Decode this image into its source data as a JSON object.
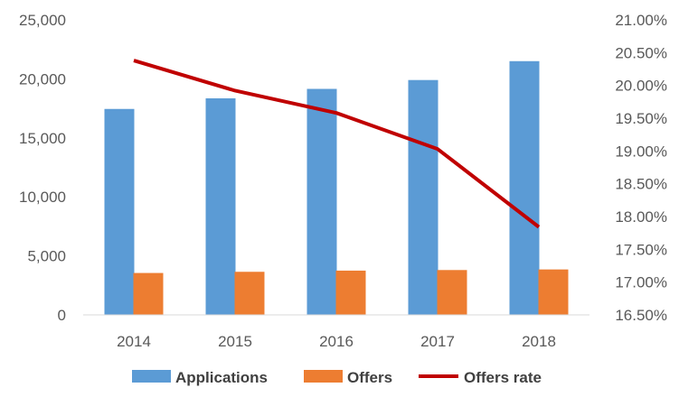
{
  "chart_data": {
    "type": "bar",
    "title": "",
    "xlabel": "",
    "ylabel": "",
    "categories": [
      "2014",
      "2015",
      "2016",
      "2017",
      "2018"
    ],
    "series": [
      {
        "name": "Applications",
        "type": "bar",
        "axis": "left",
        "color": "#5B9BD5",
        "values": [
          17450,
          18350,
          19150,
          19900,
          21500
        ]
      },
      {
        "name": "Offers",
        "type": "bar",
        "axis": "left",
        "color": "#ED7D31",
        "values": [
          3550,
          3650,
          3750,
          3800,
          3850
        ]
      },
      {
        "name": "Offers rate",
        "type": "line",
        "axis": "right",
        "color": "#C00000",
        "values": [
          0.2038,
          0.1992,
          0.1958,
          0.1903,
          0.1784
        ]
      }
    ],
    "y_left": {
      "ylim": [
        0,
        25000
      ],
      "ticks": [
        0,
        5000,
        10000,
        15000,
        20000,
        25000
      ],
      "tick_labels": [
        "0",
        "5,000",
        "10,000",
        "15,000",
        "20,000",
        "25,000"
      ]
    },
    "y_right": {
      "ylim": [
        0.165,
        0.21
      ],
      "ticks": [
        0.165,
        0.17,
        0.175,
        0.18,
        0.185,
        0.19,
        0.195,
        0.2,
        0.205,
        0.21
      ],
      "tick_labels": [
        "16.50%",
        "17.00%",
        "17.50%",
        "18.00%",
        "18.50%",
        "19.00%",
        "19.50%",
        "20.00%",
        "20.50%",
        "21.00%"
      ]
    },
    "grid": false,
    "legend": {
      "position": "bottom",
      "entries": [
        "Applications",
        "Offers",
        "Offers rate"
      ]
    }
  }
}
